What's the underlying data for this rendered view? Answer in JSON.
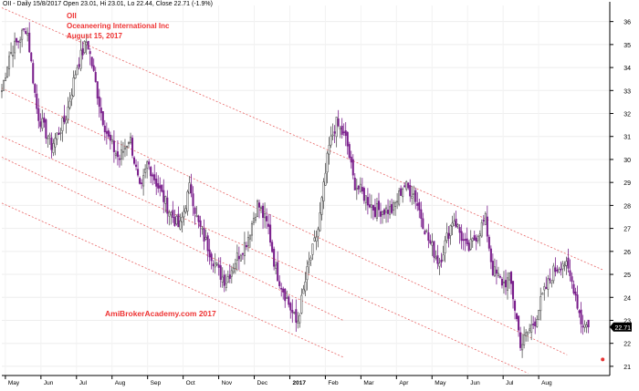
{
  "header": {
    "text": "OII - Daily 15/8/2017 Open 23.01, Hi 23.01, Lo 22.44, Close 22.71 (-1.9%)"
  },
  "annotations": {
    "symbol": "OII",
    "company": "Oceaneering International Inc",
    "date": "August 15, 2017",
    "watermark": "AmiBrokerAcademy.com  2017"
  },
  "price_label": "22.71",
  "colors": {
    "up_candle": "#a0a0a0",
    "down_candle": "#7a1f8c",
    "channel_lines": "#e86666",
    "text_red": "#ee3333",
    "marker": "#e83333"
  },
  "chart_data": {
    "type": "candlestick",
    "title": "",
    "x_axis": {
      "ticks": [
        "May",
        "Jun",
        "Jul",
        "Aug",
        "Sep",
        "Oct",
        "Nov",
        "Dec",
        "2017",
        "Feb",
        "Mar",
        "Apr",
        "May",
        "Jun",
        "Jul",
        "Aug"
      ],
      "range_months": [
        "2016-04",
        "2017-08"
      ]
    },
    "y_axis": {
      "ticks": [
        21,
        22,
        23,
        24,
        25,
        26,
        27,
        28,
        29,
        30,
        31,
        32,
        33,
        34,
        35,
        36
      ],
      "range": [
        20.6,
        36.7
      ],
      "side": "right",
      "grid": true
    },
    "last_candle": {
      "open": 23.01,
      "high": 23.01,
      "low": 22.44,
      "close": 22.71,
      "change_pct": -1.9
    },
    "series": [
      {
        "values": [
          [
            0.0,
            33.0
          ],
          [
            0.2,
            34.5
          ],
          [
            0.7,
            35.8
          ],
          [
            1.0,
            32.0
          ],
          [
            1.4,
            30.6
          ],
          [
            1.8,
            31.8
          ],
          [
            2.1,
            34.0
          ],
          [
            2.4,
            35.2
          ],
          [
            2.8,
            32.0
          ],
          [
            3.0,
            30.9
          ],
          [
            3.3,
            30.0
          ],
          [
            3.6,
            31.0
          ],
          [
            3.9,
            28.5
          ],
          [
            4.1,
            29.9
          ],
          [
            4.4,
            28.8
          ],
          [
            4.7,
            27.8
          ],
          [
            5.0,
            27.0
          ],
          [
            5.3,
            28.9
          ],
          [
            5.5,
            27.3
          ],
          [
            5.8,
            26.2
          ],
          [
            6.1,
            25.1
          ],
          [
            6.3,
            24.7
          ],
          [
            6.6,
            25.7
          ],
          [
            6.9,
            26.5
          ],
          [
            7.2,
            28.1
          ],
          [
            7.5,
            27.0
          ],
          [
            7.7,
            25.2
          ],
          [
            8.0,
            24.0
          ],
          [
            8.3,
            22.8
          ],
          [
            8.6,
            25.2
          ],
          [
            8.9,
            27.0
          ],
          [
            9.2,
            30.5
          ],
          [
            9.4,
            31.6
          ],
          [
            9.7,
            30.8
          ],
          [
            9.9,
            29.0
          ],
          [
            10.2,
            28.4
          ],
          [
            10.5,
            27.8
          ],
          [
            11.0,
            27.8
          ],
          [
            11.3,
            28.9
          ],
          [
            11.6,
            28.5
          ],
          [
            12.0,
            26.5
          ],
          [
            12.3,
            25.5
          ],
          [
            12.7,
            27.5
          ],
          [
            13.1,
            26.0
          ],
          [
            13.6,
            27.4
          ],
          [
            13.8,
            25.2
          ],
          [
            14.1,
            24.6
          ],
          [
            14.3,
            24.8
          ],
          [
            14.6,
            21.9
          ],
          [
            14.8,
            22.5
          ],
          [
            15.0,
            23.0
          ],
          [
            15.2,
            24.0
          ],
          [
            15.5,
            25.1
          ],
          [
            15.8,
            25.6
          ],
          [
            16.1,
            24.4
          ],
          [
            16.3,
            22.9
          ],
          [
            16.5,
            22.71
          ]
        ]
      }
    ],
    "channel_lines": [
      {
        "start": [
          0.0,
          36.6
        ],
        "end": [
          16.9,
          25.2
        ]
      },
      {
        "start": [
          0.0,
          33.1
        ],
        "end": [
          15.9,
          21.5
        ]
      },
      {
        "start": [
          0.0,
          31.0
        ],
        "end": [
          14.8,
          20.7
        ]
      },
      {
        "start": [
          0.0,
          30.1
        ],
        "end": [
          9.6,
          23.0
        ]
      },
      {
        "start": [
          0.0,
          28.1
        ],
        "end": [
          9.6,
          21.4
        ]
      }
    ],
    "marker": {
      "x": 16.9,
      "y": 21.3
    },
    "grid": true,
    "legend": "none"
  }
}
